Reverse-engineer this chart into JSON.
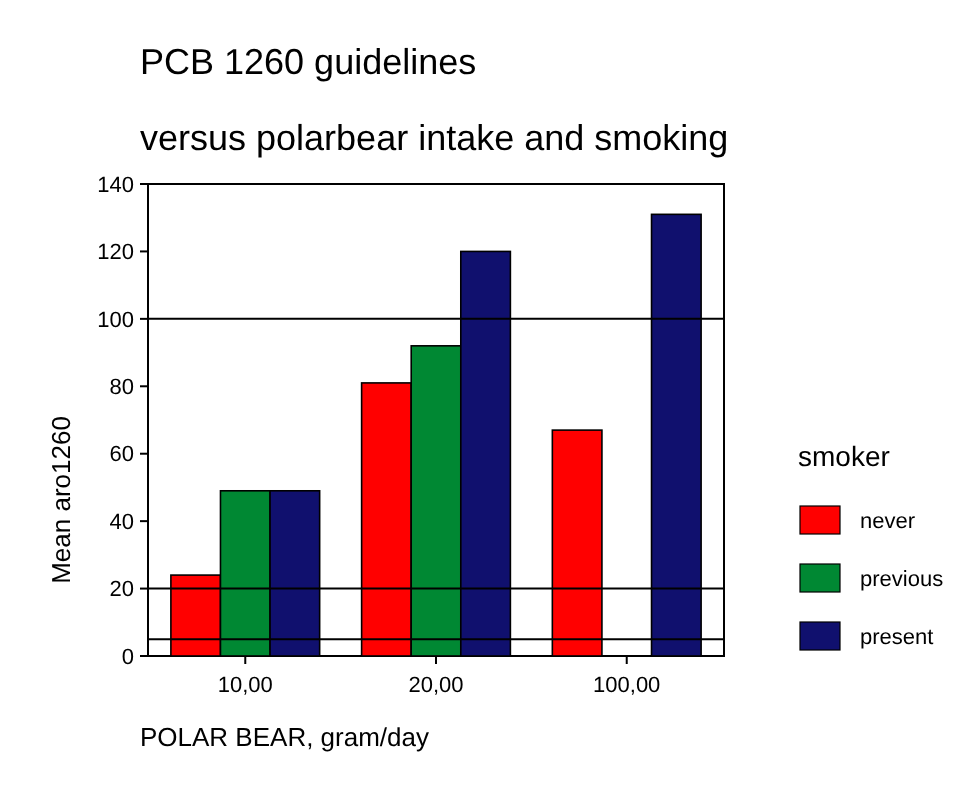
{
  "chart_data": {
    "type": "bar",
    "title": "PCB 1260 guidelines",
    "subtitle": "versus polarbear intake and smoking",
    "xlabel": "POLAR BEAR, gram/day",
    "ylabel": "Mean aro1260",
    "legend_title": "smoker",
    "legend": "right",
    "grid": false,
    "categories": [
      "10,00",
      "20,00",
      "100,00"
    ],
    "series": [
      {
        "name": "never",
        "color": "#ff0000",
        "values": [
          24,
          81,
          67
        ]
      },
      {
        "name": "previous",
        "color": "#008833",
        "values": [
          49,
          92,
          null
        ]
      },
      {
        "name": "present",
        "color": "#10106e",
        "values": [
          49,
          120,
          131
        ]
      }
    ],
    "ylim": [
      0,
      140
    ],
    "yticks": [
      0,
      20,
      40,
      60,
      80,
      100,
      120,
      140
    ],
    "ref_lines": [
      {
        "axis": "y",
        "value": 100,
        "color": "#000000"
      },
      {
        "axis": "y",
        "value": 20,
        "color": "#000000"
      },
      {
        "axis": "y",
        "value": 5,
        "color": "#000000"
      }
    ]
  }
}
